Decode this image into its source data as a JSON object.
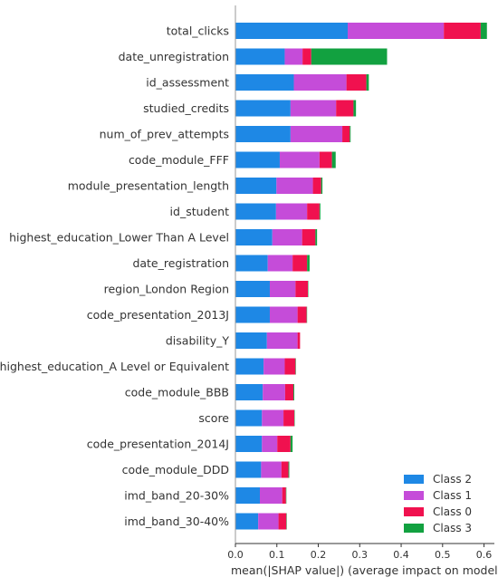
{
  "chart_data": {
    "type": "bar",
    "stacked": true,
    "orientation": "horizontal",
    "xlabel": "mean(|SHAP value|) (average impact on model output m",
    "xlim": [
      0,
      0.625
    ],
    "xticks": [
      "0.0",
      "0.1",
      "0.2",
      "0.3",
      "0.4",
      "0.5",
      "0.6"
    ],
    "categories": [
      "total_clicks",
      "date_unregistration",
      "id_assessment",
      "studied_credits",
      "num_of_prev_attempts",
      "code_module_FFF",
      "module_presentation_length",
      "id_student",
      "highest_education_Lower Than A Level",
      "date_registration",
      "region_London Region",
      "code_presentation_2013J",
      "disability_Y",
      "highest_education_A Level or Equivalent",
      "code_module_BBB",
      "score",
      "code_presentation_2014J",
      "code_module_DDD",
      "imd_band_20-30%",
      "imd_band_30-40%"
    ],
    "series": [
      {
        "name": "Class 2",
        "color": "#1E88E5",
        "values": [
          0.271,
          0.119,
          0.141,
          0.133,
          0.133,
          0.107,
          0.099,
          0.098,
          0.089,
          0.078,
          0.083,
          0.083,
          0.076,
          0.068,
          0.066,
          0.064,
          0.064,
          0.062,
          0.059,
          0.055
        ]
      },
      {
        "name": "Class 1",
        "color": "#C54CD9",
        "values": [
          0.232,
          0.043,
          0.127,
          0.11,
          0.125,
          0.096,
          0.088,
          0.075,
          0.072,
          0.06,
          0.062,
          0.067,
          0.074,
          0.051,
          0.054,
          0.052,
          0.037,
          0.049,
          0.054,
          0.049
        ]
      },
      {
        "name": "Class 0",
        "color": "#F0114F",
        "values": [
          0.089,
          0.021,
          0.048,
          0.042,
          0.018,
          0.03,
          0.02,
          0.03,
          0.032,
          0.035,
          0.03,
          0.022,
          0.006,
          0.026,
          0.02,
          0.026,
          0.032,
          0.017,
          0.009,
          0.019
        ]
      },
      {
        "name": "Class 3",
        "color": "#12A140",
        "values": [
          0.015,
          0.183,
          0.006,
          0.006,
          0.002,
          0.009,
          0.003,
          0.002,
          0.004,
          0.006,
          0.001,
          0.001,
          0.0,
          0.001,
          0.002,
          0.001,
          0.005,
          0.002,
          0.001,
          0.001
        ]
      }
    ],
    "legend": {
      "placement": "bottom-right",
      "entries": [
        "Class 2",
        "Class 1",
        "Class 0",
        "Class 3"
      ]
    }
  }
}
